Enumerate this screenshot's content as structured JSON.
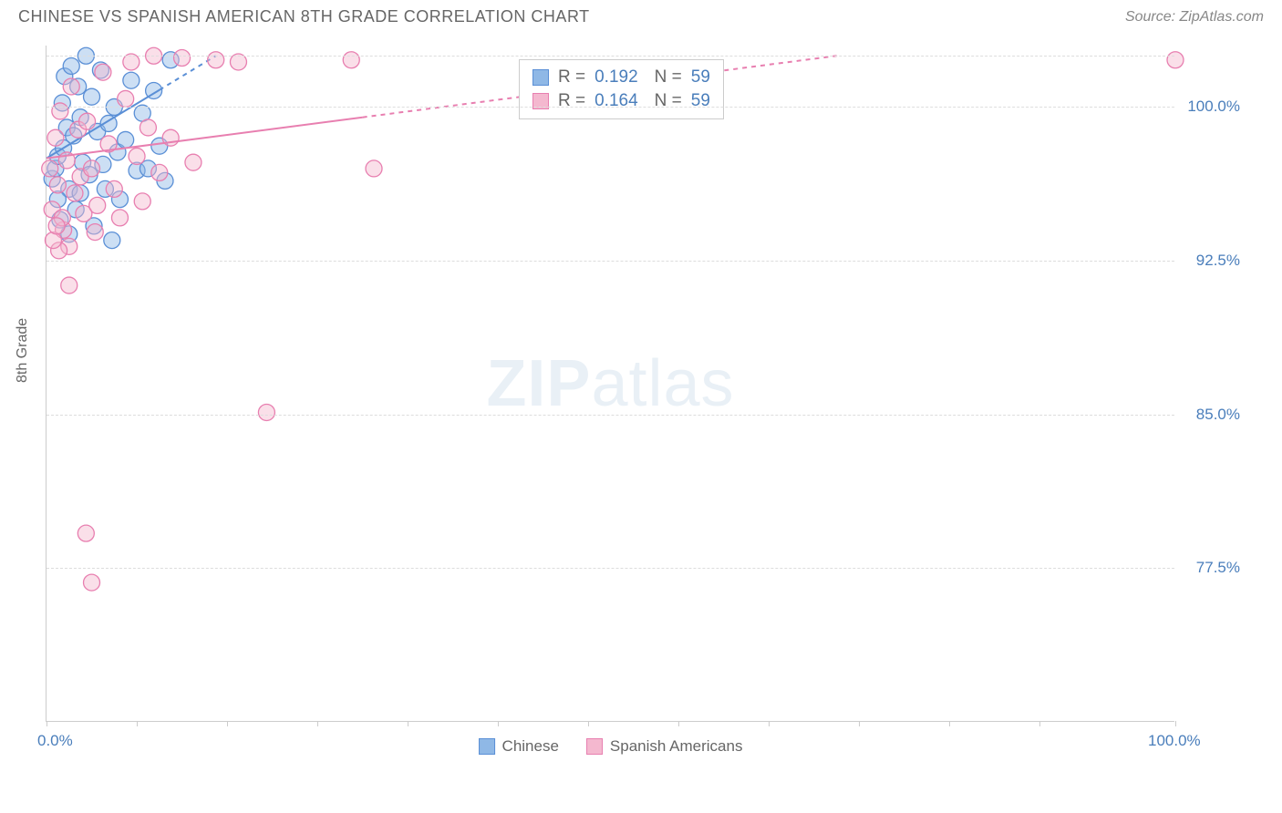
{
  "header": {
    "title": "CHINESE VS SPANISH AMERICAN 8TH GRADE CORRELATION CHART",
    "source": "Source: ZipAtlas.com"
  },
  "chart": {
    "type": "scatter",
    "ylabel": "8th Grade",
    "xlim": [
      0,
      100
    ],
    "ylim": [
      70,
      103
    ],
    "xtick_labels": [
      "0.0%",
      "100.0%"
    ],
    "xtick_positions": [
      0,
      8,
      16,
      24,
      32,
      40,
      48,
      56,
      64,
      72,
      80,
      88,
      100
    ],
    "ytick_labels": [
      "77.5%",
      "85.0%",
      "92.5%",
      "100.0%"
    ],
    "ytick_values": [
      77.5,
      85.0,
      92.5,
      100.0
    ],
    "gridline_values": [
      77.5,
      85.0,
      92.5,
      100.0,
      102.5
    ],
    "background_color": "#ffffff",
    "grid_color": "#dddddd",
    "axis_color": "#cccccc",
    "marker_radius": 9,
    "marker_opacity": 0.45,
    "series": [
      {
        "name": "Chinese",
        "color_fill": "#8fb8e6",
        "color_stroke": "#5a8fd6",
        "R": "0.192",
        "N": "59",
        "trend": {
          "x1": 0,
          "y1": 97.5,
          "x2": 15,
          "y2": 102.5,
          "solid_until_x": 10
        },
        "points": [
          [
            0.5,
            96.5
          ],
          [
            0.8,
            97.0
          ],
          [
            1.0,
            97.6
          ],
          [
            1.2,
            94.5
          ],
          [
            1.4,
            100.2
          ],
          [
            1.5,
            98.0
          ],
          [
            1.6,
            101.5
          ],
          [
            1.8,
            99.0
          ],
          [
            2.0,
            96.0
          ],
          [
            2.2,
            102.0
          ],
          [
            2.4,
            98.6
          ],
          [
            2.6,
            95.0
          ],
          [
            2.8,
            101.0
          ],
          [
            3.0,
            99.5
          ],
          [
            3.2,
            97.3
          ],
          [
            3.5,
            102.5
          ],
          [
            3.8,
            96.7
          ],
          [
            4.0,
            100.5
          ],
          [
            4.2,
            94.2
          ],
          [
            4.5,
            98.8
          ],
          [
            4.8,
            101.8
          ],
          [
            5.0,
            97.2
          ],
          [
            5.2,
            96.0
          ],
          [
            5.5,
            99.2
          ],
          [
            5.8,
            93.5
          ],
          [
            6.0,
            100.0
          ],
          [
            6.3,
            97.8
          ],
          [
            6.5,
            95.5
          ],
          [
            7.0,
            98.4
          ],
          [
            7.5,
            101.3
          ],
          [
            8.0,
            96.9
          ],
          [
            8.5,
            99.7
          ],
          [
            9.0,
            97.0
          ],
          [
            9.5,
            100.8
          ],
          [
            10.0,
            98.1
          ],
          [
            10.5,
            96.4
          ],
          [
            11.0,
            102.3
          ],
          [
            1.0,
            95.5
          ],
          [
            2.0,
            93.8
          ],
          [
            3.0,
            95.8
          ]
        ]
      },
      {
        "name": "Spanish Americans",
        "color_fill": "#f4b8cf",
        "color_stroke": "#e87fb0",
        "R": "0.164",
        "N": "59",
        "trend": {
          "x1": 0,
          "y1": 97.5,
          "x2": 70,
          "y2": 102.5,
          "solid_until_x": 28
        },
        "points": [
          [
            0.3,
            97.0
          ],
          [
            0.5,
            95.0
          ],
          [
            0.8,
            98.5
          ],
          [
            1.0,
            96.2
          ],
          [
            1.2,
            99.8
          ],
          [
            1.5,
            94.0
          ],
          [
            1.8,
            97.4
          ],
          [
            2.0,
            93.2
          ],
          [
            2.2,
            101.0
          ],
          [
            2.5,
            95.8
          ],
          [
            2.8,
            98.9
          ],
          [
            3.0,
            96.6
          ],
          [
            3.3,
            94.8
          ],
          [
            3.6,
            99.3
          ],
          [
            4.0,
            97.0
          ],
          [
            4.5,
            95.2
          ],
          [
            5.0,
            101.7
          ],
          [
            5.5,
            98.2
          ],
          [
            6.0,
            96.0
          ],
          [
            6.5,
            94.6
          ],
          [
            7.0,
            100.4
          ],
          [
            7.5,
            102.2
          ],
          [
            8.0,
            97.6
          ],
          [
            8.5,
            95.4
          ],
          [
            9.0,
            99.0
          ],
          [
            9.5,
            102.5
          ],
          [
            10.0,
            96.8
          ],
          [
            11.0,
            98.5
          ],
          [
            12.0,
            102.4
          ],
          [
            13.0,
            97.3
          ],
          [
            15.0,
            102.3
          ],
          [
            17.0,
            102.2
          ],
          [
            19.5,
            85.1
          ],
          [
            27.0,
            102.3
          ],
          [
            29.0,
            97.0
          ],
          [
            100.0,
            102.3
          ],
          [
            2.0,
            91.3
          ],
          [
            3.5,
            79.2
          ],
          [
            4.0,
            76.8
          ],
          [
            1.1,
            93.0
          ],
          [
            1.4,
            94.6
          ],
          [
            0.6,
            93.5
          ],
          [
            0.9,
            94.2
          ],
          [
            4.3,
            93.9
          ]
        ]
      }
    ],
    "legend_labels": {
      "chinese": "Chinese",
      "spanish": "Spanish Americans"
    },
    "watermark": {
      "bold": "ZIP",
      "light": "atlas"
    }
  }
}
